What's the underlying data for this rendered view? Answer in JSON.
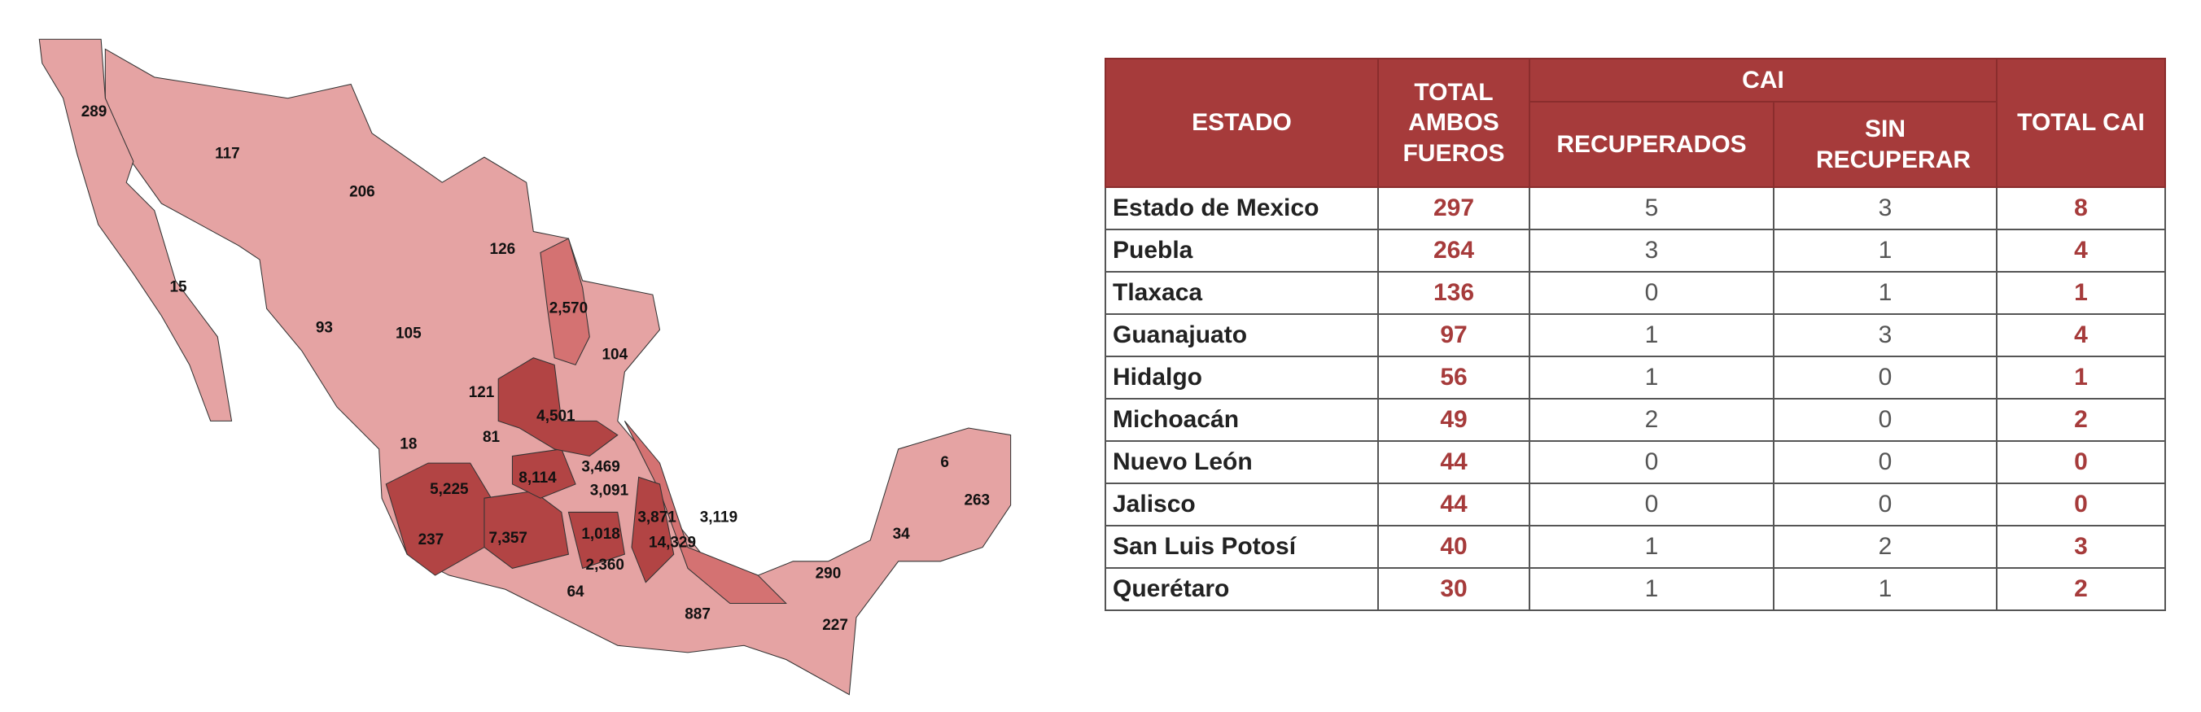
{
  "map": {
    "labels": [
      "289",
      "117",
      "206",
      "126",
      "15",
      "2,570",
      "93",
      "105",
      "104",
      "121",
      "4,501",
      "18",
      "81",
      "3,469",
      "8,114",
      "5,225",
      "3,091",
      "3,871",
      "3,119",
      "1,018",
      "7,357",
      "14,329",
      "237",
      "2,360",
      "290",
      "64",
      "887",
      "227",
      "6",
      "263",
      "34"
    ]
  },
  "table": {
    "headers": {
      "estado": "ESTADO",
      "total": "TOTAL AMBOS FUEROS",
      "cai": "CAI",
      "recuperados": "RECUPERADOS",
      "sin_recuperar": "SIN RECUPERAR",
      "total_cai": "TOTAL CAI"
    },
    "rows": [
      [
        "Estado de Mexico",
        297,
        5,
        3,
        8
      ],
      [
        "Puebla",
        264,
        3,
        1,
        4
      ],
      [
        "Tlaxaca",
        136,
        0,
        1,
        1
      ],
      [
        "Guanajuato",
        97,
        1,
        3,
        4
      ],
      [
        "Hidalgo",
        56,
        1,
        0,
        1
      ],
      [
        "Michoacán",
        49,
        2,
        0,
        2
      ],
      [
        "Nuevo León",
        44,
        0,
        0,
        0
      ],
      [
        "Jalisco",
        44,
        0,
        0,
        0
      ],
      [
        "San Luis Potosí",
        40,
        1,
        2,
        3
      ],
      [
        "Querétaro",
        30,
        1,
        1,
        2
      ]
    ]
  }
}
